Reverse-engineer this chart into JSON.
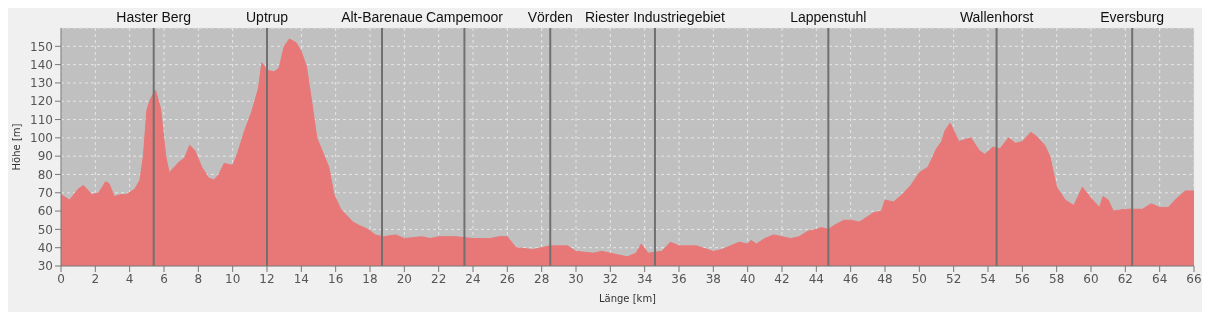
{
  "chart_data": {
    "type": "area",
    "xlabel": "Länge [km]",
    "ylabel": "Höhe [m]",
    "color": "#e87878",
    "grid": true,
    "marker": "none",
    "legend": false,
    "xlim": [
      0,
      66
    ],
    "xticks": [
      0,
      2,
      4,
      6,
      8,
      10,
      12,
      14,
      16,
      18,
      20,
      22,
      24,
      26,
      28,
      30,
      32,
      34,
      36,
      38,
      40,
      42,
      44,
      46,
      48,
      50,
      52,
      54,
      56,
      58,
      60,
      62,
      64,
      66
    ],
    "ylim": [
      30,
      160
    ],
    "yticks": [
      30,
      40,
      50,
      60,
      70,
      80,
      90,
      100,
      110,
      120,
      130,
      140,
      150
    ],
    "x": [
      0,
      0.5,
      1,
      1.3,
      1.8,
      2.2,
      2.6,
      2.8,
      3.1,
      3.5,
      3.8,
      4.3,
      4.6,
      4.8,
      5.0,
      5.2,
      5.5,
      5.8,
      6.1,
      6.3,
      6.6,
      6.9,
      7.2,
      7.5,
      7.8,
      8.2,
      8.6,
      8.9,
      9.2,
      9.5,
      10,
      10.3,
      10.7,
      11.1,
      11.5,
      11.7,
      12.0,
      12.4,
      12.7,
      13.0,
      13.3,
      13.7,
      14.0,
      14.3,
      14.6,
      14.9,
      15.3,
      15.6,
      15.9,
      16.3,
      17,
      17.4,
      17.9,
      18.3,
      18.8,
      19.5,
      20,
      21,
      21.5,
      22,
      23,
      24,
      25,
      25.5,
      26,
      26.5,
      27.5,
      28.5,
      29.5,
      30,
      31,
      31.5,
      32,
      32.5,
      33,
      33.5,
      33.8,
      34.2,
      35,
      35.5,
      36,
      37,
      38,
      38.5,
      39,
      39.5,
      40,
      40.2,
      40.5,
      41,
      41.5,
      42,
      42.5,
      43,
      43.5,
      44,
      44.3,
      44.7,
      45,
      45.6,
      46,
      46.5,
      47,
      47.3,
      47.8,
      48,
      48.5,
      49,
      49.5,
      50,
      50.5,
      51,
      51.3,
      51.5,
      51.8,
      52,
      52.3,
      53,
      53.5,
      53.8,
      54.3,
      54.7,
      55.2,
      55.6,
      56,
      56.5,
      56.8,
      57.3,
      57.6,
      58,
      58.5,
      59,
      59.5,
      60,
      60.5,
      60.7,
      61,
      61.3,
      62,
      63,
      63.5,
      64,
      64.5,
      65,
      65.5,
      66
    ],
    "values": [
      69,
      66,
      72,
      74,
      69,
      70,
      76,
      75,
      68,
      69,
      69,
      72,
      77,
      90,
      115,
      121,
      126,
      116,
      90,
      81,
      84,
      87,
      89,
      96,
      93,
      84,
      78,
      77,
      80,
      86,
      85,
      92,
      104,
      114,
      127,
      141,
      137,
      136,
      138,
      150,
      154,
      152,
      147,
      139,
      120,
      100,
      91,
      84,
      69,
      61,
      54,
      52,
      50,
      47,
      46,
      47,
      45,
      46,
      45,
      46,
      46,
      45,
      45,
      46,
      46,
      40,
      39,
      41,
      41,
      38,
      37,
      38,
      37,
      36,
      35,
      37,
      42,
      37,
      38,
      43,
      41,
      41,
      38,
      39,
      41,
      43,
      42,
      44,
      42,
      45,
      47,
      46,
      45,
      46,
      49,
      50,
      51,
      50,
      52,
      55,
      55,
      54,
      57,
      59,
      60,
      66,
      65,
      69,
      74,
      81,
      84,
      94,
      98,
      104,
      108,
      104,
      98,
      100,
      93,
      91,
      95,
      94,
      100,
      97,
      98,
      103,
      101,
      96,
      90,
      73,
      66,
      63,
      73,
      67,
      62,
      68,
      66,
      60,
      61,
      61,
      64,
      62,
      62,
      67,
      71,
      71
    ],
    "ref_lines": [
      {
        "axis": "x",
        "value": 5.4,
        "label": "Haster Berg",
        "color": "#707070"
      },
      {
        "axis": "x",
        "value": 12.0,
        "label": "Uptrup",
        "color": "#707070"
      },
      {
        "axis": "x",
        "value": 18.7,
        "label": "Alt-Barenaue",
        "color": "#707070"
      },
      {
        "axis": "x",
        "value": 23.5,
        "label": "Campemoor",
        "color": "#707070"
      },
      {
        "axis": "x",
        "value": 28.5,
        "label": "Vörden",
        "color": "#707070"
      },
      {
        "axis": "x",
        "value": 34.6,
        "label": "Riester Industriegebiet",
        "color": "#707070"
      },
      {
        "axis": "x",
        "value": 44.7,
        "label": "Lappenstuhl",
        "color": "#707070"
      },
      {
        "axis": "x",
        "value": 54.5,
        "label": "Wallenhorst",
        "color": "#707070"
      },
      {
        "axis": "x",
        "value": 62.4,
        "label": "Eversburg",
        "color": "#707070"
      }
    ]
  }
}
